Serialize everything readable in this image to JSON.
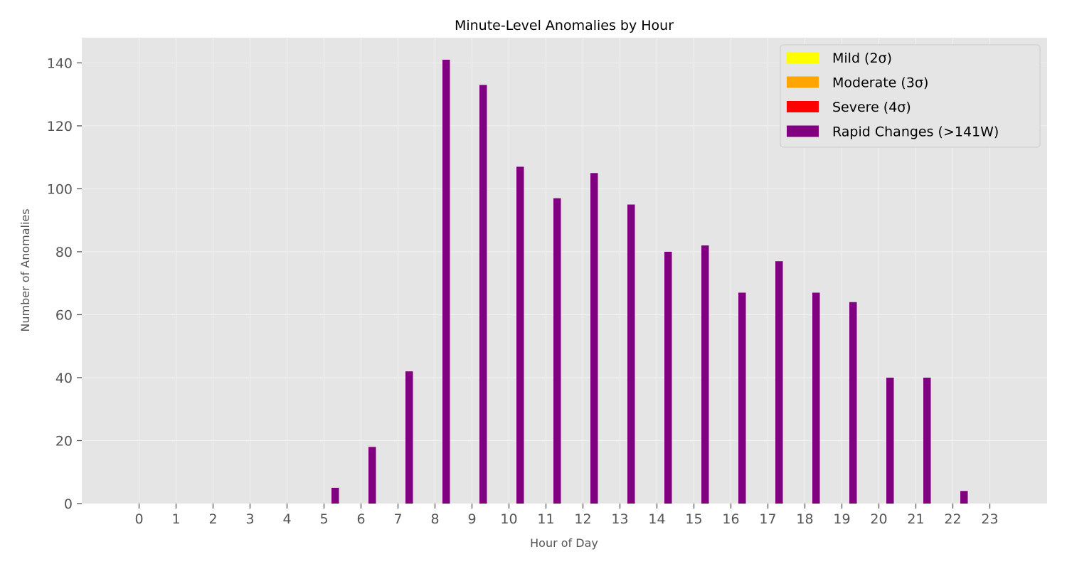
{
  "chart_data": {
    "type": "bar",
    "title": "Minute-Level Anomalies by Hour",
    "xlabel": "Hour of Day",
    "ylabel": "Number of Anomalies",
    "categories": [
      "0",
      "1",
      "2",
      "3",
      "4",
      "5",
      "6",
      "7",
      "8",
      "9",
      "10",
      "11",
      "12",
      "13",
      "14",
      "15",
      "16",
      "17",
      "18",
      "19",
      "20",
      "21",
      "22",
      "23"
    ],
    "ylim": [
      0,
      148
    ],
    "yticks": [
      0,
      20,
      40,
      60,
      80,
      100,
      120,
      140
    ],
    "grid": true,
    "legend_position": "top-right",
    "series": [
      {
        "name": "Mild (2σ)",
        "color": "#ffff00",
        "values": [
          0,
          0,
          0,
          0,
          0,
          0,
          0,
          0,
          0,
          0,
          0,
          0,
          0,
          0,
          0,
          0,
          0,
          0,
          0,
          0,
          0,
          0,
          0,
          0
        ]
      },
      {
        "name": "Moderate (3σ)",
        "color": "#ffa500",
        "values": [
          0,
          0,
          0,
          0,
          0,
          0,
          0,
          0,
          0,
          0,
          0,
          0,
          0,
          0,
          0,
          0,
          0,
          0,
          0,
          0,
          0,
          0,
          0,
          0
        ]
      },
      {
        "name": "Severe (4σ)",
        "color": "#ff0000",
        "values": [
          0,
          0,
          0,
          0,
          0,
          0,
          0,
          0,
          0,
          0,
          0,
          0,
          0,
          0,
          0,
          0,
          0,
          0,
          0,
          0,
          0,
          0,
          0,
          0
        ]
      },
      {
        "name": "Rapid Changes (>141W)",
        "color": "#800080",
        "values": [
          0,
          0,
          0,
          0,
          0,
          5,
          18,
          42,
          141,
          133,
          107,
          97,
          105,
          95,
          80,
          82,
          67,
          77,
          67,
          64,
          40,
          40,
          4,
          0
        ]
      }
    ]
  }
}
